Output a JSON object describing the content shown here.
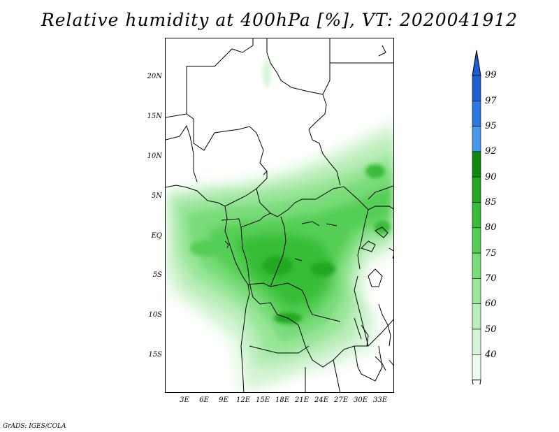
{
  "title": "Relative humidity at 400hPa [%], VT: 2020041912",
  "credit": "GrADS: IGES/COLA",
  "map": {
    "lat_labels": [
      "20N",
      "15N",
      "10N",
      "5N",
      "EQ",
      "5S",
      "10S",
      "15S"
    ],
    "lon_labels": [
      "3E",
      "6E",
      "9E",
      "12E",
      "15E",
      "18E",
      "21E",
      "24E",
      "27E",
      "30E",
      "33E"
    ]
  },
  "colorbar": {
    "labels": [
      "99",
      "97",
      "95",
      "92",
      "90",
      "85",
      "80",
      "75",
      "70",
      "60",
      "50",
      "40"
    ],
    "colors": [
      "#1e5fd0",
      "#2a78e0",
      "#4a97ee",
      "#0d8a0d",
      "#22a822",
      "#38bd38",
      "#55ce55",
      "#78dc78",
      "#9ae69a",
      "#bbeebb",
      "#d6f5d6",
      "#eefcee"
    ]
  }
}
